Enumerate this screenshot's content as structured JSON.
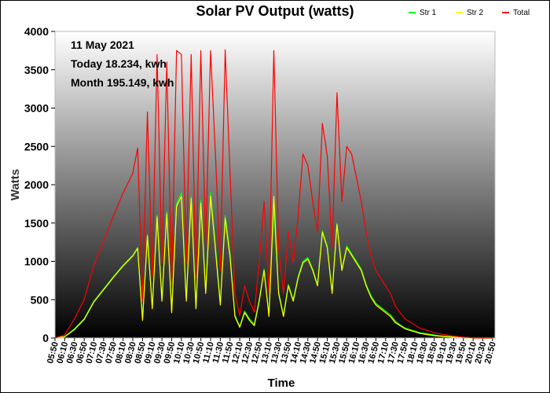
{
  "chart_data": {
    "type": "line",
    "title": "Solar PV Output (watts)",
    "xlabel": "Time",
    "ylabel": "Watts",
    "ylim": [
      0,
      4000
    ],
    "yticks": [
      0,
      500,
      1000,
      1500,
      2000,
      2500,
      3000,
      3500,
      4000
    ],
    "x_tick_labels": [
      "05:50",
      "06:10",
      "06:30",
      "06:50",
      "07:10",
      "07:30",
      "07:50",
      "08:10",
      "08:30",
      "08:50",
      "09:10",
      "09:30",
      "09:50",
      "10:10",
      "10:30",
      "10:50",
      "11:10",
      "11:30",
      "11:50",
      "12:10",
      "12:30",
      "12:50",
      "13:10",
      "13:30",
      "13:50",
      "14:10",
      "14:30",
      "14:50",
      "15:10",
      "15:30",
      "15:50",
      "16:10",
      "16:30",
      "16:50",
      "17:10",
      "17:30",
      "17:50",
      "18:10",
      "18:30",
      "18:50",
      "19:10",
      "19:30",
      "19:50",
      "20:10",
      "20:30",
      "20:50"
    ],
    "x_range": [
      "05:50",
      "20:55"
    ],
    "grid": false,
    "legend_placement": "top-right",
    "annotations": [
      "11 May 2021",
      "Today 18.234, kwh",
      "Month 195.149, kwh"
    ],
    "background": "vertical gradient from white (top) to black (bottom)",
    "series": [
      {
        "name": "Str 1",
        "color": "#00ff00",
        "x": [
          "05:50",
          "06:10",
          "06:30",
          "06:50",
          "07:10",
          "07:30",
          "07:50",
          "08:10",
          "08:30",
          "08:40",
          "08:50",
          "09:00",
          "09:10",
          "09:20",
          "09:30",
          "09:40",
          "09:50",
          "10:00",
          "10:10",
          "10:20",
          "10:30",
          "10:40",
          "10:50",
          "11:00",
          "11:10",
          "11:20",
          "11:30",
          "11:40",
          "11:50",
          "12:00",
          "12:10",
          "12:20",
          "12:30",
          "12:40",
          "12:50",
          "13:00",
          "13:10",
          "13:20",
          "13:30",
          "13:40",
          "13:50",
          "14:00",
          "14:10",
          "14:20",
          "14:30",
          "14:40",
          "14:50",
          "15:00",
          "15:10",
          "15:20",
          "15:30",
          "15:40",
          "15:50",
          "16:00",
          "16:10",
          "16:20",
          "16:30",
          "16:40",
          "16:50",
          "17:00",
          "17:10",
          "17:20",
          "17:30",
          "17:40",
          "17:50",
          "18:00",
          "18:10",
          "18:20",
          "18:30",
          "18:40",
          "18:50",
          "19:00",
          "19:10",
          "19:20",
          "19:30",
          "19:40",
          "19:50",
          "20:00",
          "20:10",
          "20:20",
          "20:30",
          "20:40",
          "20:50"
        ],
        "values": [
          0,
          20,
          120,
          250,
          480,
          640,
          800,
          950,
          1080,
          1180,
          250,
          1350,
          400,
          1600,
          500,
          1650,
          350,
          1750,
          1900,
          500,
          1850,
          400,
          1800,
          600,
          1900,
          1200,
          450,
          1600,
          1100,
          300,
          150,
          350,
          250,
          180,
          500,
          900,
          300,
          1700,
          600,
          300,
          700,
          500,
          800,
          1000,
          1050,
          900,
          700,
          1400,
          1200,
          600,
          1500,
          900,
          1200,
          1100,
          1000,
          900,
          700,
          550,
          450,
          400,
          350,
          300,
          220,
          170,
          130,
          110,
          90,
          70,
          60,
          50,
          40,
          30,
          25,
          20,
          15,
          10,
          5,
          5,
          0,
          0,
          0,
          0,
          0
        ]
      },
      {
        "name": "Str 2",
        "color": "#ffff00",
        "x": [
          "05:50",
          "06:10",
          "06:30",
          "06:50",
          "07:10",
          "07:30",
          "07:50",
          "08:10",
          "08:30",
          "08:40",
          "08:50",
          "09:00",
          "09:10",
          "09:20",
          "09:30",
          "09:40",
          "09:50",
          "10:00",
          "10:10",
          "10:20",
          "10:30",
          "10:40",
          "10:50",
          "11:00",
          "11:10",
          "11:20",
          "11:30",
          "11:40",
          "11:50",
          "12:00",
          "12:10",
          "12:20",
          "12:30",
          "12:40",
          "12:50",
          "13:00",
          "13:10",
          "13:20",
          "13:30",
          "13:40",
          "13:50",
          "14:00",
          "14:10",
          "14:20",
          "14:30",
          "14:40",
          "14:50",
          "15:00",
          "15:10",
          "15:20",
          "15:30",
          "15:40",
          "15:50",
          "16:00",
          "16:10",
          "16:20",
          "16:30",
          "16:40",
          "16:50",
          "17:00",
          "17:10",
          "17:20",
          "17:30",
          "17:40",
          "17:50",
          "18:00",
          "18:10",
          "18:20",
          "18:30",
          "18:40",
          "18:50",
          "19:00",
          "19:10",
          "19:20",
          "19:30",
          "19:40",
          "19:50",
          "20:00",
          "20:10",
          "20:20",
          "20:30",
          "20:40",
          "20:50"
        ],
        "values": [
          0,
          15,
          110,
          240,
          470,
          630,
          790,
          940,
          1070,
          1170,
          230,
          1330,
          380,
          1580,
          480,
          1620,
          330,
          1720,
          1850,
          480,
          1820,
          380,
          1760,
          580,
          1850,
          1150,
          430,
          1560,
          1050,
          280,
          140,
          330,
          230,
          160,
          480,
          880,
          280,
          1850,
          580,
          280,
          680,
          480,
          780,
          980,
          1030,
          880,
          680,
          1380,
          1180,
          580,
          1480,
          880,
          1180,
          1080,
          980,
          880,
          680,
          530,
          430,
          380,
          330,
          280,
          200,
          160,
          120,
          100,
          80,
          60,
          50,
          40,
          30,
          25,
          20,
          15,
          10,
          8,
          5,
          3,
          0,
          0,
          0,
          0,
          0
        ]
      },
      {
        "name": "Total",
        "color": "#ff0000",
        "x": [
          "05:50",
          "06:10",
          "06:30",
          "06:50",
          "07:10",
          "07:30",
          "07:50",
          "08:10",
          "08:30",
          "08:40",
          "08:50",
          "09:00",
          "09:10",
          "09:20",
          "09:30",
          "09:40",
          "09:50",
          "10:00",
          "10:10",
          "10:20",
          "10:30",
          "10:40",
          "10:50",
          "11:00",
          "11:10",
          "11:20",
          "11:30",
          "11:40",
          "11:50",
          "12:00",
          "12:10",
          "12:20",
          "12:30",
          "12:40",
          "12:50",
          "13:00",
          "13:10",
          "13:20",
          "13:30",
          "13:40",
          "13:50",
          "14:00",
          "14:10",
          "14:20",
          "14:30",
          "14:40",
          "14:50",
          "15:00",
          "15:10",
          "15:20",
          "15:30",
          "15:40",
          "15:50",
          "16:00",
          "16:10",
          "16:20",
          "16:30",
          "16:40",
          "16:50",
          "17:00",
          "17:10",
          "17:20",
          "17:30",
          "17:40",
          "17:50",
          "18:00",
          "18:10",
          "18:20",
          "18:30",
          "18:40",
          "18:50",
          "19:00",
          "19:10",
          "19:20",
          "19:30",
          "19:40",
          "19:50",
          "20:00",
          "20:10",
          "20:20",
          "20:30",
          "20:40",
          "20:50"
        ],
        "values": [
          0,
          40,
          250,
          500,
          950,
          1270,
          1590,
          1890,
          2150,
          2480,
          480,
          2950,
          800,
          3700,
          980,
          3600,
          700,
          3750,
          3700,
          980,
          3700,
          780,
          3750,
          1180,
          3750,
          2400,
          880,
          3760,
          2150,
          580,
          290,
          680,
          480,
          340,
          980,
          1780,
          580,
          3750,
          1180,
          580,
          1380,
          980,
          1580,
          2400,
          2250,
          1780,
          1380,
          2800,
          2380,
          1180,
          3200,
          1780,
          2500,
          2400,
          2100,
          1780,
          1380,
          1080,
          880,
          780,
          680,
          580,
          420,
          330,
          250,
          210,
          170,
          130,
          110,
          90,
          70,
          55,
          45,
          35,
          25,
          18,
          10,
          8,
          0,
          0,
          0,
          0,
          0
        ]
      }
    ]
  }
}
